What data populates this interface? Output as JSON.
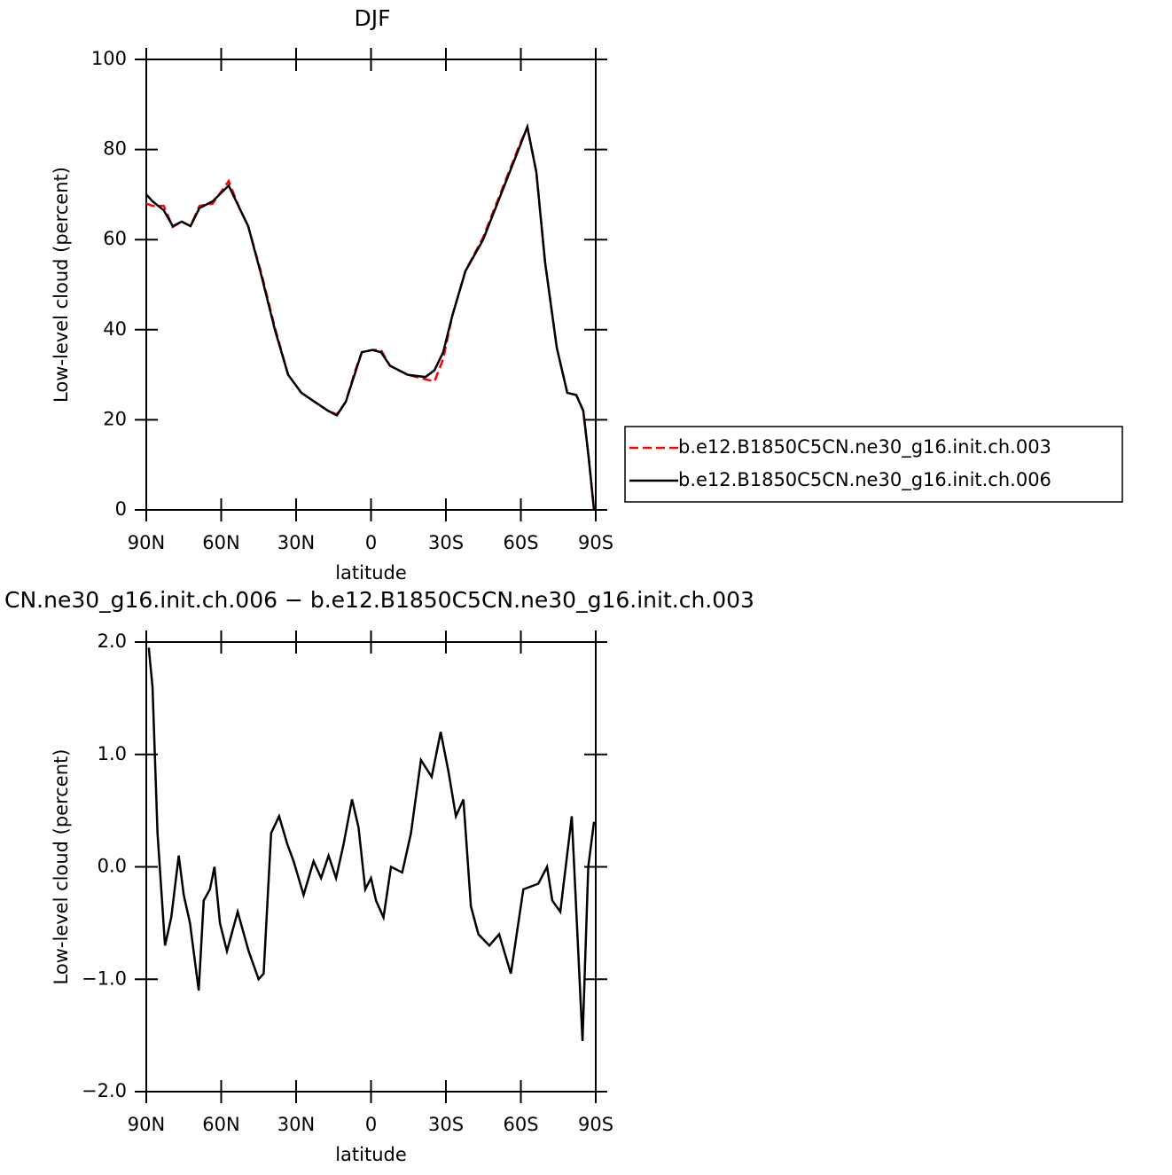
{
  "chart_data": [
    {
      "type": "line",
      "title": "DJF",
      "xlabel": "latitude",
      "ylabel": "Low-level cloud (percent)",
      "x": [
        90,
        87.5,
        83,
        79.4,
        75.8,
        72.3,
        68.7,
        63.4,
        57,
        52.7,
        49.2,
        43.9,
        38.5,
        33.2,
        27.9,
        22.6,
        17.2,
        13.7,
        10.1,
        6.6,
        3.7,
        -0.5,
        -4,
        -7.6,
        -14.7,
        -21.8,
        -25.4,
        -28.9,
        -32.5,
        -37.8,
        -44.9,
        -52,
        -59.1,
        -62.6,
        -66.2,
        -69.7,
        -74.4,
        -78.6,
        -82.2,
        -85,
        -87.1,
        -89.3
      ],
      "series": [
        {
          "name": "b.e12.B1850C5CN.ne30_g16.init.ch.003",
          "color": "#ff0000",
          "dashed": true,
          "values": [
            68,
            67.5,
            67.5,
            62.8,
            64,
            63,
            67.5,
            68,
            73,
            67,
            63,
            52.5,
            40.5,
            30,
            26,
            24,
            22,
            21.2,
            24,
            30.5,
            35,
            35.5,
            35.5,
            32,
            30,
            29,
            28.5,
            33.5,
            43,
            53,
            60.5,
            70.5,
            80.5,
            85,
            75,
            55,
            36,
            26,
            25.5,
            22,
            12,
            0
          ]
        },
        {
          "name": "b.e12.B1850C5CN.ne30_g16.init.ch.006",
          "color": "#000000",
          "dashed": false,
          "values": [
            70,
            68.5,
            66.5,
            63,
            64,
            63,
            67,
            68.5,
            72,
            67,
            63,
            52,
            40,
            30,
            26,
            24,
            22,
            21,
            24,
            30,
            35,
            35.5,
            35,
            32,
            30,
            29.5,
            31,
            35,
            43,
            53,
            60,
            70,
            80,
            85,
            75,
            55,
            36,
            26,
            25.5,
            22,
            12,
            0
          ]
        }
      ],
      "xlim": [
        90,
        -90
      ],
      "xticks": [
        {
          "value": 90,
          "label": "90N"
        },
        {
          "value": 60,
          "label": "60N"
        },
        {
          "value": 30,
          "label": "30N"
        },
        0,
        {
          "value": -30,
          "label": "30S"
        },
        {
          "value": -60,
          "label": "60S"
        },
        {
          "value": -90,
          "label": "90S"
        }
      ],
      "ylim": [
        0,
        100
      ],
      "yticks": [
        0,
        20,
        40,
        60,
        80,
        100
      ],
      "legend": "right"
    },
    {
      "type": "line",
      "title": "CN.ne30_g16.init.ch.006 − b.e12.B1850C5CN.ne30_g16.init.ch.003",
      "xlabel": "latitude",
      "ylabel": "Low-level cloud (percent)",
      "x": [
        89,
        87.5,
        85.5,
        82.5,
        80,
        77,
        75,
        72.5,
        69,
        67,
        64.5,
        62.7,
        60.5,
        57.7,
        53.4,
        49,
        45,
        43,
        40,
        36.8,
        33.5,
        31,
        27,
        23,
        20,
        17,
        14,
        11,
        7.6,
        5,
        2.3,
        0,
        -2,
        -5,
        -8,
        -12.5,
        -16,
        -20,
        -24.3,
        -27.9,
        -31,
        -34,
        -37,
        -40,
        -43,
        -47.4,
        -51.3,
        -56,
        -61,
        -67,
        -70.5,
        -72.6,
        -75.8,
        -80.4,
        -84.7,
        -87,
        -89.3
      ],
      "series": [
        {
          "name": null,
          "color": "#000000",
          "dashed": false,
          "values": [
            1.95,
            1.6,
            0.3,
            -0.7,
            -0.45,
            0.1,
            -0.25,
            -0.5,
            -1.1,
            -0.3,
            -0.2,
            0,
            -0.5,
            -0.75,
            -0.4,
            -0.75,
            -1.0,
            -0.95,
            0.3,
            0.45,
            0.2,
            0.05,
            -0.25,
            0.05,
            -0.1,
            0.1,
            -0.1,
            0.2,
            0.6,
            0.35,
            -0.2,
            -0.1,
            -0.3,
            -0.45,
            0,
            -0.05,
            0.3,
            0.95,
            0.8,
            1.2,
            0.85,
            0.45,
            0.6,
            -0.35,
            -0.6,
            -0.7,
            -0.6,
            -0.95,
            -0.2,
            -0.15,
            0,
            -0.3,
            -0.4,
            0.45,
            -1.55,
            0,
            0.4
          ]
        }
      ],
      "xlim": [
        90,
        -90
      ],
      "xticks": [
        {
          "value": 90,
          "label": "90N"
        },
        {
          "value": 60,
          "label": "60N"
        },
        {
          "value": 30,
          "label": "30N"
        },
        0,
        {
          "value": -30,
          "label": "30S"
        },
        {
          "value": -60,
          "label": "60S"
        },
        {
          "value": -90,
          "label": "90S"
        }
      ],
      "ylim": [
        -2,
        2
      ],
      "yticks": [
        {
          "value": -2,
          "label": "−2.0"
        },
        {
          "value": -1,
          "label": "−1.0"
        },
        {
          "value": 0,
          "label": "0.0"
        },
        {
          "value": 1,
          "label": "1.0"
        },
        {
          "value": 2,
          "label": "2.0"
        }
      ]
    }
  ]
}
